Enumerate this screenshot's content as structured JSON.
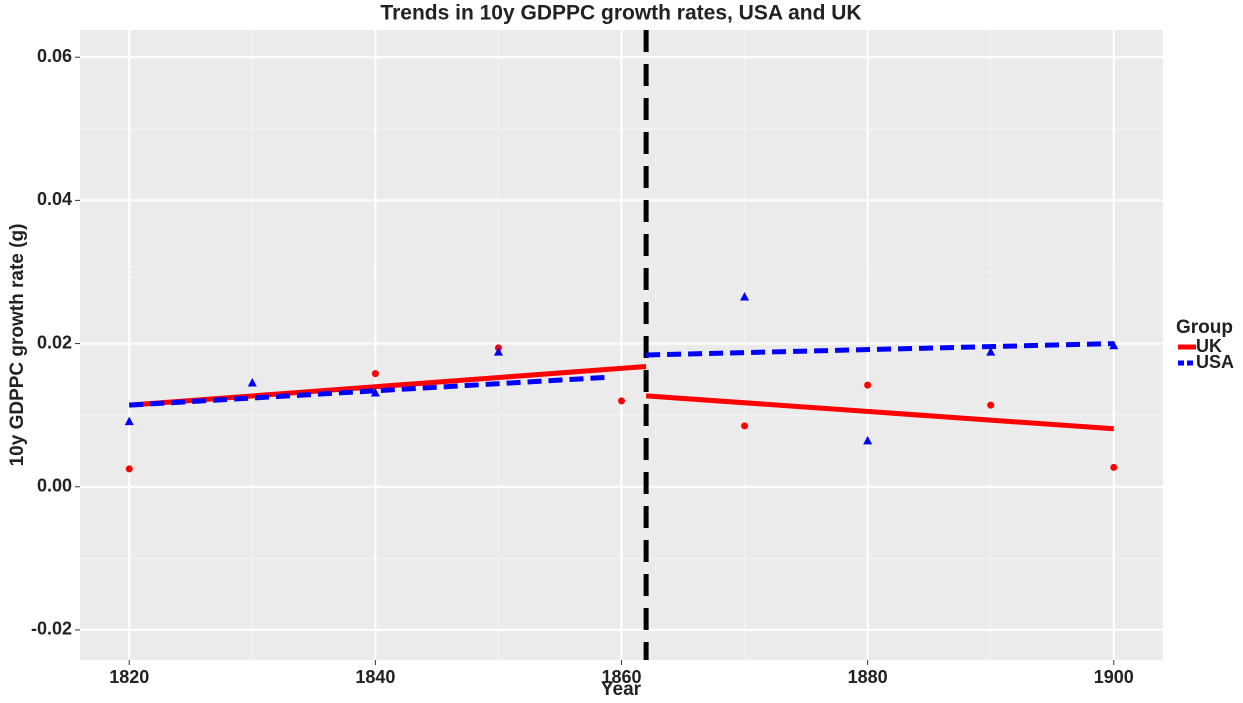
{
  "chart_data": {
    "type": "scatter",
    "title": "Trends in 10y GDPPC growth rates, USA and UK",
    "x_label": "Year",
    "y_label": "10y GDPPC growth rate (g)",
    "legend_title": "Group",
    "legend_position": "right",
    "grid": true,
    "xlim": [
      1816,
      1904
    ],
    "ylim": [
      -0.0242,
      0.0638
    ],
    "xticks": [
      1820,
      1840,
      1860,
      1880,
      1900
    ],
    "x_minor_ticks": [
      1830,
      1850,
      1870,
      1890
    ],
    "yticks": [
      {
        "value": -0.02,
        "label": "-0.02"
      },
      {
        "value": 0,
        "label": "0.00"
      },
      {
        "value": 0.02,
        "label": "0.02"
      },
      {
        "value": 0.04,
        "label": "0.04"
      },
      {
        "value": 0.06,
        "label": "0.06"
      }
    ],
    "y_minor_ticks": [
      -0.01,
      0.01,
      0.03,
      0.05
    ],
    "vline": 1862,
    "vline_color": "#000000",
    "series": [
      {
        "name": "UK",
        "color": "#ff0000",
        "marker": "circle",
        "line": "solid",
        "x": [
          1820,
          1840,
          1850,
          1860,
          1870,
          1880,
          1890,
          1900
        ],
        "values": [
          0.0025,
          0.0158,
          0.0194,
          0.012,
          0.0085,
          0.0142,
          0.0114,
          0.0027
        ],
        "fits": [
          {
            "x": [
              1820,
              1862
            ],
            "values": [
              0.0114,
              0.0168
            ]
          },
          {
            "x": [
              1862,
              1900
            ],
            "values": [
              0.0127,
              0.0081
            ]
          }
        ]
      },
      {
        "name": "USA",
        "color": "#0000ff",
        "marker": "triangle",
        "line": "dashed",
        "x": [
          1820,
          1830,
          1840,
          1850,
          1870,
          1880,
          1890,
          1900
        ],
        "values": [
          0.0091,
          0.0145,
          0.0131,
          0.0188,
          0.0265,
          0.0064,
          0.0188,
          0.0197
        ],
        "fits": [
          {
            "x": [
              1820,
              1859
            ],
            "values": [
              0.0114,
              0.0153
            ]
          },
          {
            "x": [
              1862,
              1900
            ],
            "values": [
              0.0184,
              0.02
            ]
          }
        ]
      }
    ]
  }
}
